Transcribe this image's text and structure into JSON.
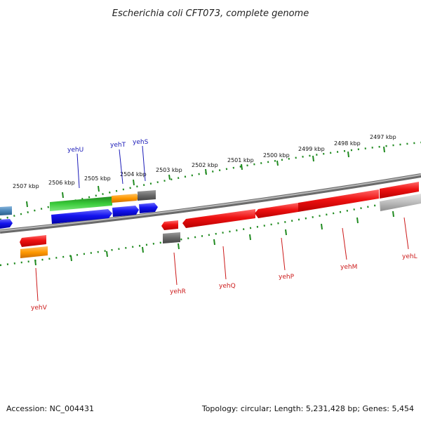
{
  "title": "Escherichia coli CFT073, complete genome",
  "footer": {
    "accession": "Accession: NC_004431",
    "summary": "Topology: circular; Length: 5,231,428 bp; Genes: 5,454"
  },
  "colors": {
    "backbone": "#8a8a8a",
    "tick": "#1f8a1f",
    "forward_label": "#1a1ab8",
    "reverse_label": "#cc1a1a",
    "gene_red": "#ee1111",
    "gene_blue": "#1414ee",
    "gene_green": "#3ccc3c",
    "gene_orange": "#ff9900",
    "gene_gray": "#707070",
    "gene_lightgray": "#bdbdbd",
    "gene_steelblue": "#4a86b8"
  },
  "scale_labels": [
    "2507 kbp",
    "2506 kbp",
    "2505 kbp",
    "2504 kbp",
    "2503 kbp",
    "2502 kbp",
    "2501 kbp",
    "2500 kbp",
    "2499 kbp",
    "2498 kbp",
    "2497 kbp"
  ],
  "forward_labels": [
    "yehU",
    "yehT",
    "yehS"
  ],
  "reverse_labels": [
    "yehV",
    "yehR",
    "yehQ",
    "yehP",
    "yehM",
    "yehL"
  ]
}
